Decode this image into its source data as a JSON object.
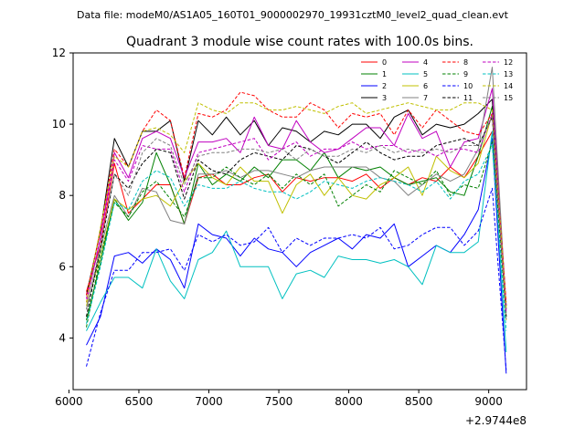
{
  "header": {
    "data_file": "Data file: modeM0/AS1A05_160T01_9000002970_19931cztM0_level2_quad_clean.evt"
  },
  "chart_data": {
    "type": "line",
    "title": "Quadrant 3 module wise count rates with 100.0s bins.",
    "xlabel": "",
    "ylabel": "",
    "x_offset_label": "+2.9744e8",
    "xlim": [
      6030,
      9270
    ],
    "ylim": [
      2.55,
      12.0
    ],
    "x_ticks": [
      6000,
      6500,
      7000,
      7500,
      8000,
      8500,
      9000
    ],
    "x_tick_labels": [
      "6000",
      "6500",
      "7000",
      "7500",
      "8000",
      "8500",
      "9000"
    ],
    "y_ticks": [
      4,
      6,
      8,
      10,
      12
    ],
    "y_tick_labels": [
      "4",
      "6",
      "8",
      "10",
      "12"
    ],
    "grid": false,
    "legend_position": "top-right",
    "x": [
      6125,
      6225,
      6325,
      6425,
      6525,
      6625,
      6725,
      6825,
      6925,
      7025,
      7125,
      7225,
      7325,
      7425,
      7525,
      7625,
      7725,
      7825,
      7925,
      8025,
      8125,
      8225,
      8325,
      8425,
      8525,
      8625,
      8725,
      8825,
      8925,
      9025,
      9125
    ],
    "series": [
      {
        "name": "0",
        "color": "#ff0000",
        "dash": "solid",
        "values": [
          5.3,
          6.6,
          8.9,
          7.5,
          7.9,
          8.3,
          8.3,
          7.2,
          8.5,
          8.6,
          8.3,
          8.3,
          8.5,
          8.6,
          8.1,
          8.5,
          8.4,
          8.5,
          8.5,
          8.4,
          8.6,
          8.2,
          8.5,
          8.3,
          8.5,
          8.4,
          8.8,
          8.5,
          9.1,
          9.8,
          4.9
        ]
      },
      {
        "name": "1",
        "color": "#008000",
        "dash": "solid",
        "values": [
          4.5,
          6.1,
          7.9,
          7.3,
          7.8,
          9.2,
          8.3,
          7.2,
          8.9,
          8.3,
          8.6,
          8.4,
          8.8,
          8.5,
          9.0,
          9.0,
          8.7,
          9.2,
          8.5,
          8.8,
          8.7,
          8.8,
          8.5,
          8.3,
          8.4,
          8.5,
          8.1,
          8.0,
          9.1,
          10.5,
          4.8
        ]
      },
      {
        "name": "2",
        "color": "#0000ff",
        "dash": "solid",
        "values": [
          3.8,
          4.6,
          6.3,
          6.4,
          6.1,
          6.5,
          6.2,
          5.4,
          7.2,
          6.9,
          6.8,
          6.3,
          6.8,
          6.5,
          6.4,
          6.0,
          6.4,
          6.6,
          6.8,
          6.5,
          6.9,
          6.8,
          7.2,
          6.0,
          6.3,
          6.6,
          6.4,
          6.9,
          7.6,
          9.6,
          3.0
        ]
      },
      {
        "name": "3",
        "color": "#000000",
        "dash": "solid",
        "values": [
          5.2,
          7.0,
          9.6,
          8.8,
          9.8,
          9.8,
          10.1,
          8.4,
          10.1,
          9.7,
          10.2,
          9.7,
          10.1,
          9.4,
          9.9,
          9.8,
          9.5,
          9.8,
          9.7,
          10.0,
          10.0,
          9.6,
          10.2,
          10.4,
          9.7,
          10.0,
          9.9,
          10.0,
          10.3,
          10.7,
          4.9
        ]
      },
      {
        "name": "4",
        "color": "#c000c0",
        "dash": "solid",
        "values": [
          5.0,
          6.8,
          9.2,
          8.5,
          9.6,
          9.8,
          9.6,
          8.5,
          9.5,
          9.5,
          9.6,
          9.2,
          10.2,
          9.4,
          9.3,
          10.1,
          9.5,
          9.2,
          9.3,
          9.6,
          9.9,
          9.9,
          9.4,
          10.3,
          9.6,
          9.8,
          8.8,
          9.5,
          9.6,
          11.0,
          4.8
        ]
      },
      {
        "name": "5",
        "color": "#00c0c0",
        "dash": "solid",
        "values": [
          4.2,
          5.0,
          5.7,
          5.7,
          5.4,
          6.5,
          5.6,
          5.1,
          6.2,
          6.4,
          7.0,
          6.0,
          6.0,
          6.0,
          5.1,
          5.8,
          5.9,
          5.7,
          6.3,
          6.2,
          6.2,
          6.1,
          6.2,
          6.0,
          5.5,
          6.6,
          6.4,
          6.4,
          6.7,
          9.8,
          3.6
        ]
      },
      {
        "name": "6",
        "color": "#c0c000",
        "dash": "solid",
        "values": [
          4.9,
          6.3,
          7.9,
          7.6,
          7.9,
          8.0,
          7.7,
          8.4,
          8.9,
          8.5,
          8.3,
          8.8,
          8.4,
          8.4,
          7.5,
          8.3,
          8.6,
          8.0,
          8.5,
          8.0,
          7.9,
          8.3,
          8.5,
          8.8,
          8.0,
          9.1,
          8.7,
          8.5,
          8.9,
          10.3,
          4.5
        ]
      },
      {
        "name": "7",
        "color": "#808080",
        "dash": "solid",
        "values": [
          4.8,
          6.5,
          8.0,
          7.4,
          8.2,
          8.1,
          7.3,
          7.2,
          8.6,
          8.6,
          8.7,
          8.5,
          8.7,
          8.7,
          8.6,
          8.5,
          8.7,
          8.8,
          8.8,
          8.8,
          8.8,
          8.5,
          8.4,
          8.0,
          8.3,
          8.6,
          8.4,
          8.6,
          9.3,
          11.6,
          4.7
        ]
      },
      {
        "name": "8",
        "color": "#ff0000",
        "dash": "dashed",
        "values": [
          5.2,
          7.0,
          9.3,
          8.8,
          9.8,
          10.4,
          10.1,
          8.5,
          10.3,
          10.2,
          10.4,
          10.9,
          10.8,
          10.4,
          10.2,
          10.2,
          10.6,
          10.4,
          9.9,
          10.3,
          10.2,
          10.3,
          9.7,
          10.4,
          9.9,
          10.4,
          10.1,
          9.8,
          9.7,
          10.3,
          5.0
        ]
      },
      {
        "name": "9",
        "color": "#008000",
        "dash": "dashed",
        "values": [
          4.3,
          6.3,
          7.8,
          7.4,
          8.1,
          8.4,
          7.9,
          7.4,
          8.5,
          8.5,
          8.8,
          8.5,
          8.3,
          8.6,
          8.2,
          8.6,
          8.3,
          8.6,
          7.7,
          8.0,
          8.3,
          8.1,
          8.7,
          8.5,
          8.3,
          8.7,
          8.0,
          8.3,
          8.2,
          9.5,
          4.6
        ]
      },
      {
        "name": "10",
        "color": "#0000ff",
        "dash": "dashed",
        "values": [
          3.2,
          4.7,
          5.9,
          5.9,
          6.4,
          6.4,
          6.5,
          5.9,
          6.9,
          6.7,
          6.9,
          6.6,
          6.7,
          7.1,
          6.4,
          6.8,
          6.6,
          6.8,
          6.8,
          6.9,
          6.8,
          7.1,
          6.5,
          6.6,
          6.9,
          7.1,
          7.1,
          6.6,
          7.0,
          8.2,
          3.1
        ]
      },
      {
        "name": "11",
        "color": "#000000",
        "dash": "dashed",
        "values": [
          4.6,
          6.5,
          8.6,
          8.2,
          8.9,
          9.3,
          9.2,
          7.9,
          9.0,
          8.7,
          8.6,
          9.0,
          9.2,
          9.1,
          9.0,
          9.4,
          9.3,
          9.1,
          8.9,
          9.2,
          9.5,
          9.2,
          9.0,
          9.1,
          9.1,
          9.4,
          9.5,
          9.6,
          9.4,
          10.2,
          4.6
        ]
      },
      {
        "name": "12",
        "color": "#c000c0",
        "dash": "dashed",
        "values": [
          5.1,
          6.8,
          9.0,
          8.4,
          9.4,
          9.3,
          9.3,
          8.1,
          9.2,
          9.3,
          9.4,
          9.5,
          9.6,
          9.0,
          9.3,
          9.5,
          9.1,
          9.3,
          9.3,
          9.5,
          9.3,
          9.4,
          9.4,
          9.2,
          9.3,
          9.1,
          9.3,
          9.3,
          9.2,
          10.3,
          4.7
        ]
      },
      {
        "name": "13",
        "color": "#00c0c0",
        "dash": "dashed",
        "values": [
          4.4,
          6.0,
          7.8,
          7.6,
          8.4,
          8.7,
          8.5,
          7.7,
          8.3,
          8.2,
          8.2,
          8.4,
          8.2,
          8.1,
          8.1,
          7.9,
          8.1,
          8.4,
          8.3,
          8.2,
          8.4,
          8.5,
          8.4,
          8.3,
          8.1,
          8.4,
          7.9,
          8.4,
          8.6,
          9.4,
          4.2
        ]
      },
      {
        "name": "14",
        "color": "#c0c000",
        "dash": "dashed",
        "values": [
          5.0,
          7.1,
          9.1,
          8.8,
          9.8,
          9.9,
          9.7,
          9.2,
          10.6,
          10.4,
          10.3,
          10.6,
          10.6,
          10.4,
          10.4,
          10.5,
          10.4,
          10.3,
          10.5,
          10.6,
          10.3,
          10.4,
          10.5,
          10.6,
          10.5,
          10.4,
          10.4,
          10.6,
          10.6,
          10.4,
          4.8
        ]
      },
      {
        "name": "15",
        "color": "#808080",
        "dash": "dashed",
        "values": [
          4.8,
          6.6,
          8.6,
          8.0,
          9.2,
          9.6,
          9.4,
          8.3,
          9.1,
          9.2,
          9.2,
          9.3,
          9.3,
          9.2,
          9.3,
          9.0,
          9.3,
          9.1,
          9.1,
          9.3,
          9.2,
          9.4,
          9.2,
          9.3,
          9.2,
          9.3,
          9.2,
          9.4,
          9.4,
          10.2,
          4.5
        ]
      }
    ]
  }
}
